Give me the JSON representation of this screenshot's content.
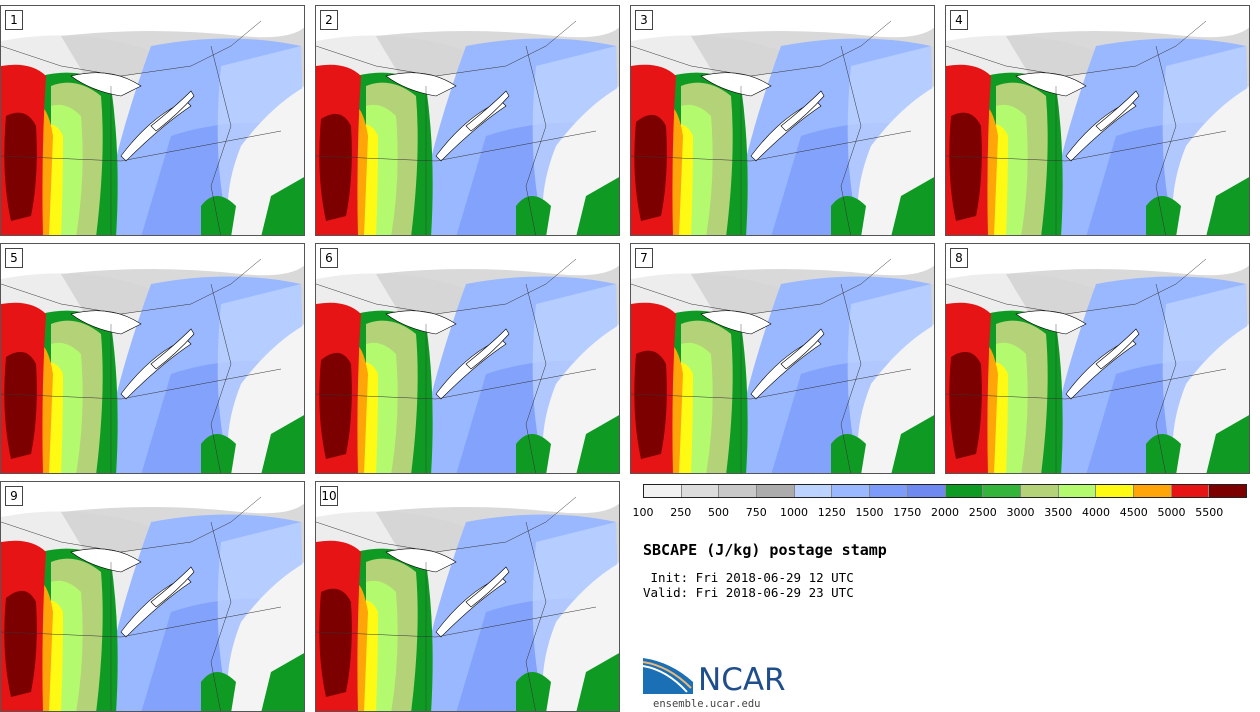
{
  "product": {
    "title": "SBCAPE (J/kg) postage stamp",
    "init": " Init: Fri 2018-06-29 12 UTC",
    "valid": "Valid: Fri 2018-06-29 23 UTC"
  },
  "members": [
    "1",
    "2",
    "3",
    "4",
    "5",
    "6",
    "7",
    "8",
    "9",
    "10"
  ],
  "colorbar": {
    "colors": [
      "#f2f2f2",
      "#dcdcdc",
      "#c8c8c8",
      "#acacac",
      "#bcd2ff",
      "#9ab8ff",
      "#7d9cfa",
      "#6e8af0",
      "#0f9b23",
      "#35b43c",
      "#b4d278",
      "#b4fa6e",
      "#fffa14",
      "#ffa50a",
      "#e61414",
      "#7d0000"
    ],
    "tick_labels": [
      "100",
      "250",
      "500",
      "750",
      "1000",
      "1250",
      "1500",
      "1750",
      "2000",
      "2500",
      "3000",
      "3500",
      "4000",
      "4500",
      "5000",
      "5500"
    ]
  },
  "logo": {
    "name": "NCAR",
    "site": "ensemble.ucar.edu"
  }
}
